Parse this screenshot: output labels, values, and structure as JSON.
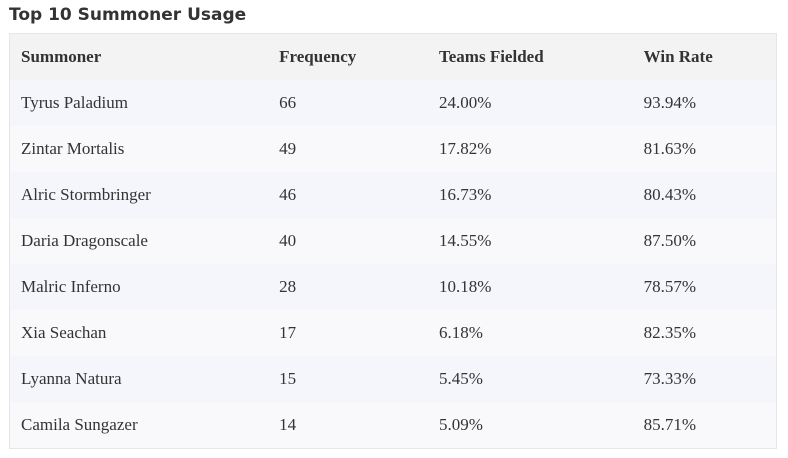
{
  "title": "Top 10 Summoner Usage",
  "table": {
    "header": [
      "Summoner",
      "Frequency",
      "Teams Fielded",
      "Win Rate"
    ],
    "rows": [
      [
        "Tyrus Paladium",
        "66",
        "24.00%",
        "93.94%"
      ],
      [
        "Zintar Mortalis",
        "49",
        "17.82%",
        "81.63%"
      ],
      [
        "Alric Stormbringer",
        "46",
        "16.73%",
        "80.43%"
      ],
      [
        "Daria Dragonscale",
        "40",
        "14.55%",
        "87.50%"
      ],
      [
        "Malric Inferno",
        "28",
        "10.18%",
        "78.57%"
      ],
      [
        "Xia Seachan",
        "17",
        "6.18%",
        "82.35%"
      ],
      [
        "Lyanna Natura",
        "15",
        "5.45%",
        "73.33%"
      ],
      [
        "Camila Sungazer",
        "14",
        "5.09%",
        "85.71%"
      ]
    ]
  }
}
